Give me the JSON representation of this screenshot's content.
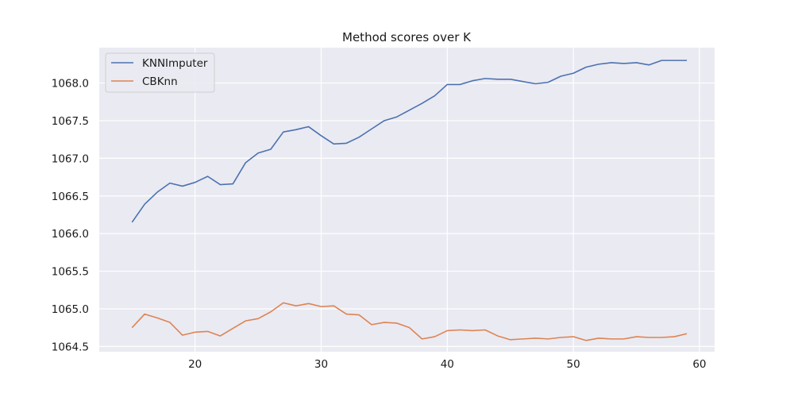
{
  "chart_data": {
    "type": "line",
    "title": "Method scores over K",
    "xlabel": "",
    "ylabel": "",
    "xlim": [
      12.4,
      61.2
    ],
    "ylim": [
      1064.43,
      1068.47
    ],
    "xticks": [
      20,
      30,
      40,
      50,
      60
    ],
    "yticks": [
      1064.5,
      1065.0,
      1065.5,
      1066.0,
      1066.5,
      1067.0,
      1067.5,
      1068.0
    ],
    "ytick_labels": [
      "1064.5",
      "1065.0",
      "1065.5",
      "1066.0",
      "1066.5",
      "1067.0",
      "1067.5",
      "1068.0"
    ],
    "grid": true,
    "legend_position": "top-left",
    "background_color": "#eaeaf2",
    "x": [
      15,
      16,
      17,
      18,
      19,
      20,
      21,
      22,
      23,
      24,
      25,
      26,
      27,
      28,
      29,
      30,
      31,
      32,
      33,
      34,
      35,
      36,
      37,
      38,
      39,
      40,
      41,
      42,
      43,
      44,
      45,
      46,
      47,
      48,
      49,
      50,
      51,
      52,
      53,
      54,
      55,
      56,
      57,
      58,
      59
    ],
    "series": [
      {
        "name": "KNNImputer",
        "color": "#4c72b0",
        "values": [
          1066.15,
          1066.39,
          1066.55,
          1066.67,
          1066.63,
          1066.68,
          1066.76,
          1066.65,
          1066.66,
          1066.94,
          1067.07,
          1067.12,
          1067.35,
          1067.38,
          1067.42,
          1067.3,
          1067.19,
          1067.2,
          1067.28,
          1067.39,
          1067.5,
          1067.55,
          1067.64,
          1067.73,
          1067.83,
          1067.98,
          1067.98,
          1068.03,
          1068.06,
          1068.05,
          1068.05,
          1068.02,
          1067.99,
          1068.01,
          1068.09,
          1068.13,
          1068.21,
          1068.25,
          1068.27,
          1068.26,
          1068.27,
          1068.24,
          1068.3,
          1068.3,
          1068.3
        ]
      },
      {
        "name": "CBKnn",
        "color": "#dd8452",
        "values": [
          1064.75,
          1064.93,
          1064.88,
          1064.82,
          1064.65,
          1064.69,
          1064.7,
          1064.64,
          1064.74,
          1064.84,
          1064.87,
          1064.96,
          1065.08,
          1065.04,
          1065.07,
          1065.03,
          1065.04,
          1064.93,
          1064.92,
          1064.79,
          1064.82,
          1064.81,
          1064.75,
          1064.6,
          1064.63,
          1064.71,
          1064.72,
          1064.71,
          1064.72,
          1064.64,
          1064.59,
          1064.6,
          1064.61,
          1064.6,
          1064.62,
          1064.63,
          1064.58,
          1064.61,
          1064.6,
          1064.6,
          1064.63,
          1064.62,
          1064.62,
          1064.63,
          1064.67
        ]
      }
    ]
  }
}
